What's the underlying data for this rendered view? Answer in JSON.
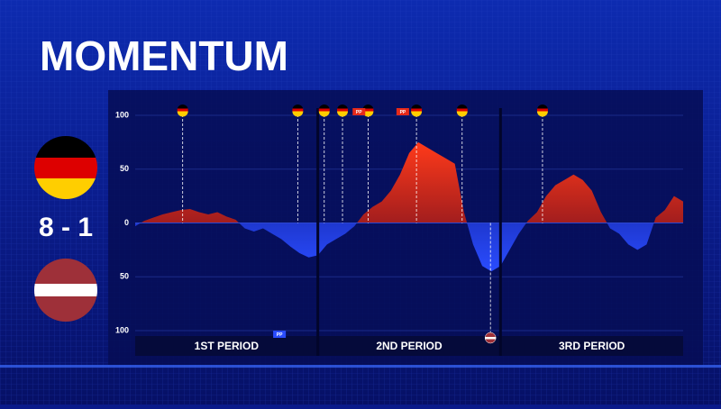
{
  "title": "MOMENTUM",
  "score": "8 - 1",
  "chart_data": {
    "type": "momentum",
    "x": [
      0,
      1,
      2,
      3,
      4,
      5,
      6,
      7,
      8,
      9,
      10,
      11,
      12,
      13,
      14,
      15,
      16,
      17,
      18,
      19,
      20,
      21,
      22,
      23,
      24,
      25,
      26,
      27,
      28,
      29,
      30,
      31,
      32,
      33,
      34,
      35,
      36,
      37,
      38,
      39,
      40,
      41,
      42,
      43,
      44,
      45,
      46,
      47,
      48,
      49,
      50,
      51,
      52,
      53,
      54,
      55,
      56,
      57,
      58,
      59,
      60
    ],
    "series": [
      {
        "colors": {
          "positive": "#e63b1f",
          "negative": "#1f3fe0"
        },
        "values": [
          -3,
          2,
          5,
          8,
          10,
          12,
          13,
          10,
          8,
          10,
          6,
          3,
          -5,
          -8,
          -5,
          -10,
          -15,
          -22,
          -28,
          -32,
          -30,
          -20,
          -15,
          -10,
          -3,
          8,
          15,
          20,
          30,
          45,
          65,
          75,
          70,
          65,
          60,
          55,
          10,
          -20,
          -40,
          -45,
          -40,
          -25,
          -10,
          2,
          10,
          25,
          35,
          40,
          45,
          40,
          30,
          10,
          -5,
          -10,
          -20,
          -25,
          -20,
          5,
          12,
          25,
          20
        ]
      }
    ],
    "xlim": [
      0,
      60
    ],
    "ylim": [
      -100,
      100
    ],
    "yticks": [
      100,
      50,
      0,
      {
        "value": -50,
        "label": "50"
      },
      {
        "value": -100,
        "label": "100"
      }
    ],
    "periods": [
      "1ST PERIOD",
      "2ND PERIOD",
      "3RD PERIOD"
    ],
    "period_ends": [
      20,
      40
    ],
    "home_goals": [
      5.2,
      17.8,
      20.7,
      22.7,
      25.5,
      30.8,
      35.8,
      44.6
    ],
    "away_goals": [
      38.9
    ],
    "power_plays": [
      {
        "x": 24.5,
        "label": "PP",
        "team": "home"
      },
      {
        "x": 29.3,
        "label": "PP",
        "team": "home"
      },
      {
        "x": 15.8,
        "label": "PP",
        "team": "away"
      }
    ]
  }
}
